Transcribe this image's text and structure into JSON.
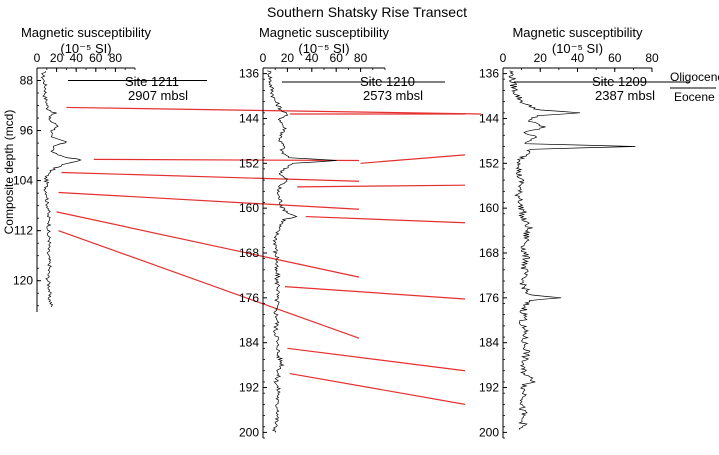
{
  "chart_data": {
    "type": "line",
    "title": "Southern Shatsky Rise Transect",
    "ylabel": "Composite depth (mcd)",
    "panels": [
      {
        "site": "Site 1211",
        "depth_mbsl": "2907 mbsl",
        "header_line1": "Magnetic susceptibility",
        "header_line2": "(10⁻⁵ SI)",
        "xlim": [
          0,
          100
        ],
        "xticks": [
          "0",
          "20",
          "40",
          "60",
          "80"
        ],
        "ylim": [
          86,
          125
        ],
        "yticks": [
          "88",
          "96",
          "104",
          "112",
          "120"
        ],
        "boundary_depth": 88.0,
        "profile": [
          [
            86.5,
            7
          ],
          [
            87.5,
            6
          ],
          [
            88.5,
            8
          ],
          [
            89.5,
            9
          ],
          [
            90.5,
            8
          ],
          [
            91.5,
            10
          ],
          [
            92.5,
            11
          ],
          [
            93.2,
            18
          ],
          [
            93.8,
            12
          ],
          [
            94.5,
            14
          ],
          [
            95.3,
            22
          ],
          [
            96,
            16
          ],
          [
            97,
            13
          ],
          [
            97.8,
            30
          ],
          [
            98.5,
            18
          ],
          [
            99.5,
            15
          ],
          [
            100.2,
            28
          ],
          [
            100.7,
            45
          ],
          [
            101.3,
            30
          ],
          [
            102,
            18
          ],
          [
            102.8,
            12
          ],
          [
            103.5,
            9
          ],
          [
            104.5,
            10
          ],
          [
            105.5,
            9
          ],
          [
            106.5,
            11
          ],
          [
            107.5,
            10
          ],
          [
            108.5,
            12
          ],
          [
            109.5,
            11
          ],
          [
            110.5,
            13
          ],
          [
            111.5,
            12
          ],
          [
            112.5,
            11
          ],
          [
            113.5,
            13
          ],
          [
            114.5,
            12
          ],
          [
            115.5,
            11
          ],
          [
            116.5,
            12
          ],
          [
            117.5,
            13
          ],
          [
            118.5,
            12
          ],
          [
            119.5,
            11
          ],
          [
            120.5,
            12
          ],
          [
            121.5,
            13
          ],
          [
            122.5,
            12
          ],
          [
            123.5,
            14
          ],
          [
            124.2,
            15
          ]
        ]
      },
      {
        "site": "Site 1210",
        "depth_mbsl": "2573 mbsl",
        "header_line1": "Magnetic susceptibility",
        "header_line2": "(10⁻⁵ SI)",
        "xlim": [
          0,
          100
        ],
        "xticks": [
          "0",
          "20",
          "40",
          "60",
          "80"
        ],
        "ylim": [
          135,
          201
        ],
        "yticks": [
          "136",
          "144",
          "152",
          "160",
          "168",
          "176",
          "184",
          "192",
          "200"
        ],
        "boundary_depth": 137.5,
        "profile": [
          [
            135.5,
            5
          ],
          [
            136.5,
            6
          ],
          [
            137.5,
            6
          ],
          [
            138.5,
            7
          ],
          [
            139.5,
            8
          ],
          [
            140.5,
            9
          ],
          [
            141.5,
            12
          ],
          [
            142.5,
            15
          ],
          [
            143.2,
            20
          ],
          [
            144,
            14
          ],
          [
            145,
            16
          ],
          [
            146,
            18
          ],
          [
            147,
            15
          ],
          [
            148,
            14
          ],
          [
            149,
            17
          ],
          [
            150,
            15
          ],
          [
            151,
            22
          ],
          [
            151.5,
            60
          ],
          [
            152,
            25
          ],
          [
            153,
            18
          ],
          [
            154,
            14
          ],
          [
            155,
            20
          ],
          [
            156,
            14
          ],
          [
            157,
            12
          ],
          [
            158,
            13
          ],
          [
            159,
            15
          ],
          [
            160,
            16
          ],
          [
            161,
            22
          ],
          [
            161.5,
            28
          ],
          [
            162,
            18
          ],
          [
            163,
            14
          ],
          [
            164,
            12
          ],
          [
            165,
            11
          ],
          [
            166,
            10
          ],
          [
            167,
            11
          ],
          [
            168,
            10
          ],
          [
            169,
            12
          ],
          [
            170,
            11
          ],
          [
            171,
            10
          ],
          [
            172,
            12
          ],
          [
            173,
            11
          ],
          [
            174,
            13
          ],
          [
            175,
            12
          ],
          [
            176,
            11
          ],
          [
            177,
            12
          ],
          [
            178,
            10
          ],
          [
            179,
            11
          ],
          [
            180,
            12
          ],
          [
            181,
            11
          ],
          [
            182,
            10
          ],
          [
            183,
            12
          ],
          [
            184,
            11
          ],
          [
            185,
            13
          ],
          [
            186,
            12
          ],
          [
            187,
            14
          ],
          [
            188,
            16
          ],
          [
            189,
            13
          ],
          [
            190,
            12
          ],
          [
            191,
            11
          ],
          [
            192,
            12
          ],
          [
            193,
            13
          ],
          [
            194,
            12
          ],
          [
            195,
            11
          ],
          [
            196,
            13
          ],
          [
            197,
            12
          ],
          [
            198,
            11
          ],
          [
            199,
            10
          ],
          [
            200,
            10
          ]
        ]
      },
      {
        "site": "Site 1209",
        "depth_mbsl": "2387 mbsl",
        "header_line1": "Magnetic susceptibility",
        "header_line2": "(10⁻⁵ SI)",
        "xlim": [
          0,
          80
        ],
        "xticks": [
          "0",
          "20",
          "40",
          "60",
          "80"
        ],
        "ylim": [
          135,
          201
        ],
        "yticks": [
          "136",
          "144",
          "152",
          "160",
          "168",
          "176",
          "184",
          "192",
          "200"
        ],
        "boundary_depth": 137.5,
        "profile": [
          [
            135.5,
            4
          ],
          [
            136.5,
            5
          ],
          [
            137.5,
            5
          ],
          [
            138.5,
            6
          ],
          [
            139.5,
            7
          ],
          [
            140.5,
            9
          ],
          [
            141.5,
            12
          ],
          [
            142.5,
            20
          ],
          [
            143,
            40
          ],
          [
            143.5,
            18
          ],
          [
            144.5,
            14
          ],
          [
            145.5,
            22
          ],
          [
            146.5,
            12
          ],
          [
            147.5,
            18
          ],
          [
            148.5,
            12
          ],
          [
            149,
            70
          ],
          [
            149.5,
            15
          ],
          [
            150.5,
            12
          ],
          [
            151.5,
            9
          ],
          [
            152.5,
            10
          ],
          [
            153.5,
            8
          ],
          [
            154.5,
            9
          ],
          [
            155.5,
            10
          ],
          [
            156.5,
            9
          ],
          [
            157.5,
            8
          ],
          [
            158.5,
            10
          ],
          [
            159.5,
            9
          ],
          [
            160.5,
            11
          ],
          [
            161.5,
            10
          ],
          [
            162.5,
            12
          ],
          [
            163.5,
            14
          ],
          [
            164.5,
            12
          ],
          [
            165.5,
            13
          ],
          [
            166.5,
            12
          ],
          [
            167.5,
            11
          ],
          [
            168.5,
            12
          ],
          [
            169.5,
            13
          ],
          [
            170.5,
            11
          ],
          [
            171.5,
            12
          ],
          [
            172.5,
            10
          ],
          [
            173.5,
            11
          ],
          [
            174.5,
            12
          ],
          [
            175.5,
            14
          ],
          [
            176,
            30
          ],
          [
            176.5,
            13
          ],
          [
            177.5,
            12
          ],
          [
            178.5,
            11
          ],
          [
            179.5,
            12
          ],
          [
            180.5,
            10
          ],
          [
            181.5,
            11
          ],
          [
            182.5,
            12
          ],
          [
            183.5,
            11
          ],
          [
            184.5,
            12
          ],
          [
            185.5,
            13
          ],
          [
            186.5,
            12
          ],
          [
            187.5,
            11
          ],
          [
            188.5,
            10
          ],
          [
            189.5,
            12
          ],
          [
            190.5,
            15
          ],
          [
            191,
            18
          ],
          [
            191.5,
            12
          ],
          [
            192.5,
            11
          ],
          [
            193.5,
            12
          ],
          [
            194.5,
            11
          ],
          [
            195.5,
            10
          ],
          [
            196.5,
            11
          ],
          [
            197.5,
            10
          ],
          [
            198.5,
            11
          ],
          [
            199.5,
            9
          ]
        ]
      }
    ],
    "correlations": [
      {
        "from": {
          "panel": 0,
          "x": 30,
          "depth": 92.3
        },
        "to": {
          "panel": 1,
          "x": 100,
          "depth": 143.2
        }
      },
      {
        "from": {
          "panel": 0,
          "x": 58,
          "depth": 100.6
        },
        "to": {
          "panel": 1,
          "x": 0,
          "depth": 151.5
        }
      },
      {
        "from": {
          "panel": 0,
          "x": 25,
          "depth": 102.7
        },
        "to": {
          "panel": 1,
          "x": 0,
          "depth": 155.2
        }
      },
      {
        "from": {
          "panel": 0,
          "x": 22,
          "depth": 105.9
        },
        "to": {
          "panel": 1,
          "x": 0,
          "depth": 160.2
        }
      },
      {
        "from": {
          "panel": 0,
          "x": 20,
          "depth": 109.0
        },
        "to": {
          "panel": 1,
          "x": 0,
          "depth": 172.3
        }
      },
      {
        "from": {
          "panel": 0,
          "x": 22,
          "depth": 112.0
        },
        "to": {
          "panel": 1,
          "x": 0,
          "depth": 183.2
        }
      },
      {
        "from": {
          "panel": 1,
          "x": 22,
          "depth": 143.2
        },
        "to": {
          "panel": 2,
          "x": 0,
          "depth": 143.2
        }
      },
      {
        "from": {
          "panel": 1,
          "x": 80,
          "depth": 152.0
        },
        "to": {
          "panel": 2,
          "x": 0,
          "depth": 150.5
        }
      },
      {
        "from": {
          "panel": 1,
          "x": 28,
          "depth": 156.2
        },
        "to": {
          "panel": 2,
          "x": 0,
          "depth": 155.9
        }
      },
      {
        "from": {
          "panel": 1,
          "x": 35,
          "depth": 161.5
        },
        "to": {
          "panel": 2,
          "x": 0,
          "depth": 162.6
        }
      },
      {
        "from": {
          "panel": 1,
          "x": 18,
          "depth": 174.0
        },
        "to": {
          "panel": 2,
          "x": 0,
          "depth": 176.2
        }
      },
      {
        "from": {
          "panel": 1,
          "x": 20,
          "depth": 185.0
        },
        "to": {
          "panel": 2,
          "x": 0,
          "depth": 189.0
        }
      },
      {
        "from": {
          "panel": 1,
          "x": 22,
          "depth": 189.5
        },
        "to": {
          "panel": 2,
          "x": 0,
          "depth": 195.0
        }
      }
    ],
    "boundary_labels": {
      "upper": "Oligocene",
      "lower": "Eocene"
    },
    "colors": {
      "correlation": "#e53030",
      "profile": "#000000",
      "axis": "#000000"
    }
  }
}
